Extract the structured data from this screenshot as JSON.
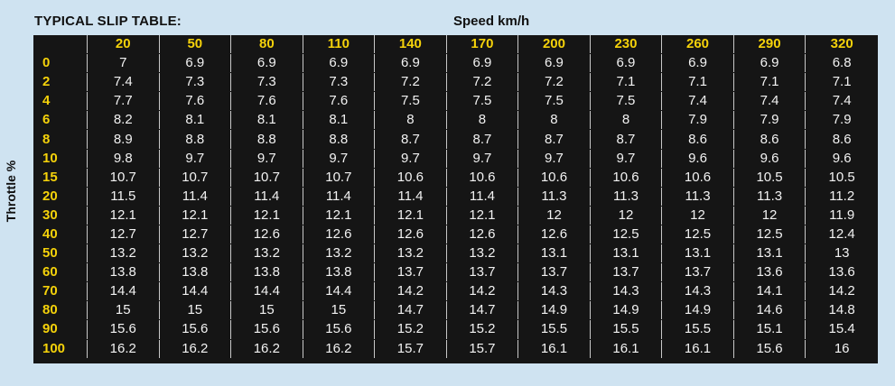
{
  "title": "TYPICAL SLIP TABLE:",
  "speed_label": "Speed km/h",
  "throttle_label": "Throttle %",
  "speeds": [
    "20",
    "50",
    "80",
    "110",
    "140",
    "170",
    "200",
    "230",
    "260",
    "290",
    "320"
  ],
  "rows": [
    {
      "throttle": "0",
      "values": [
        "7",
        "6.9",
        "6.9",
        "6.9",
        "6.9",
        "6.9",
        "6.9",
        "6.9",
        "6.9",
        "6.9",
        "6.8"
      ]
    },
    {
      "throttle": "2",
      "values": [
        "7.4",
        "7.3",
        "7.3",
        "7.3",
        "7.2",
        "7.2",
        "7.2",
        "7.1",
        "7.1",
        "7.1",
        "7.1"
      ]
    },
    {
      "throttle": "4",
      "values": [
        "7.7",
        "7.6",
        "7.6",
        "7.6",
        "7.5",
        "7.5",
        "7.5",
        "7.5",
        "7.4",
        "7.4",
        "7.4"
      ]
    },
    {
      "throttle": "6",
      "values": [
        "8.2",
        "8.1",
        "8.1",
        "8.1",
        "8",
        "8",
        "8",
        "8",
        "7.9",
        "7.9",
        "7.9"
      ]
    },
    {
      "throttle": "8",
      "values": [
        "8.9",
        "8.8",
        "8.8",
        "8.8",
        "8.7",
        "8.7",
        "8.7",
        "8.7",
        "8.6",
        "8.6",
        "8.6"
      ]
    },
    {
      "throttle": "10",
      "values": [
        "9.8",
        "9.7",
        "9.7",
        "9.7",
        "9.7",
        "9.7",
        "9.7",
        "9.7",
        "9.6",
        "9.6",
        "9.6"
      ]
    },
    {
      "throttle": "15",
      "values": [
        "10.7",
        "10.7",
        "10.7",
        "10.7",
        "10.6",
        "10.6",
        "10.6",
        "10.6",
        "10.6",
        "10.5",
        "10.5"
      ]
    },
    {
      "throttle": "20",
      "values": [
        "11.5",
        "11.4",
        "11.4",
        "11.4",
        "11.4",
        "11.4",
        "11.3",
        "11.3",
        "11.3",
        "11.3",
        "11.2"
      ]
    },
    {
      "throttle": "30",
      "values": [
        "12.1",
        "12.1",
        "12.1",
        "12.1",
        "12.1",
        "12.1",
        "12",
        "12",
        "12",
        "12",
        "11.9"
      ]
    },
    {
      "throttle": "40",
      "values": [
        "12.7",
        "12.7",
        "12.6",
        "12.6",
        "12.6",
        "12.6",
        "12.6",
        "12.5",
        "12.5",
        "12.5",
        "12.4"
      ]
    },
    {
      "throttle": "50",
      "values": [
        "13.2",
        "13.2",
        "13.2",
        "13.2",
        "13.2",
        "13.2",
        "13.1",
        "13.1",
        "13.1",
        "13.1",
        "13"
      ]
    },
    {
      "throttle": "60",
      "values": [
        "13.8",
        "13.8",
        "13.8",
        "13.8",
        "13.7",
        "13.7",
        "13.7",
        "13.7",
        "13.7",
        "13.6",
        "13.6"
      ]
    },
    {
      "throttle": "70",
      "values": [
        "14.4",
        "14.4",
        "14.4",
        "14.4",
        "14.2",
        "14.2",
        "14.3",
        "14.3",
        "14.3",
        "14.1",
        "14.2"
      ]
    },
    {
      "throttle": "80",
      "values": [
        "15",
        "15",
        "15",
        "15",
        "14.7",
        "14.7",
        "14.9",
        "14.9",
        "14.9",
        "14.6",
        "14.8"
      ]
    },
    {
      "throttle": "90",
      "values": [
        "15.6",
        "15.6",
        "15.6",
        "15.6",
        "15.2",
        "15.2",
        "15.5",
        "15.5",
        "15.5",
        "15.1",
        "15.4"
      ]
    },
    {
      "throttle": "100",
      "values": [
        "16.2",
        "16.2",
        "16.2",
        "16.2",
        "15.7",
        "15.7",
        "16.1",
        "16.1",
        "16.1",
        "15.6",
        "16"
      ]
    }
  ],
  "colors": {
    "background": "#cfe3f1",
    "table": "#151515",
    "header_text": "#f5d20a",
    "value_text": "#f2f2f2"
  }
}
